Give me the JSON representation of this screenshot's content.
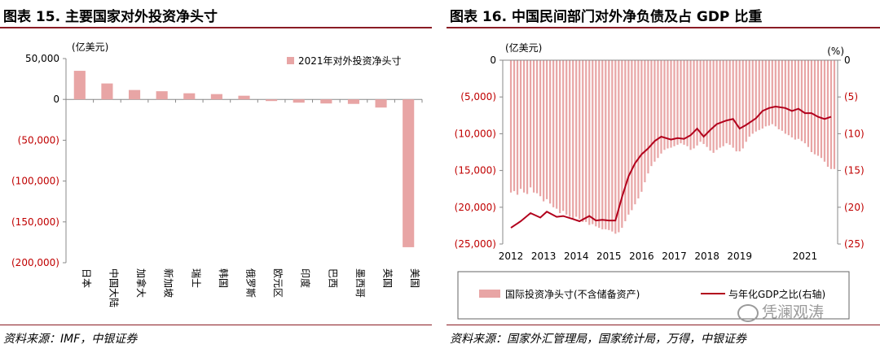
{
  "left": {
    "figure_title": "图表 15. 主要国家对外投资净头寸",
    "source": "资料来源：IMF，中银证券",
    "chart_data": {
      "type": "bar",
      "unit_label": "(亿美元)",
      "legend": "2021年对外投资净头寸",
      "categories": [
        "日本",
        "中国大陆",
        "加拿大",
        "新加坡",
        "瑞士",
        "韩国",
        "俄罗斯",
        "欧元区",
        "印度",
        "巴西",
        "墨西哥",
        "英国",
        "美国"
      ],
      "values": [
        35000,
        19500,
        11500,
        10000,
        7500,
        6500,
        4500,
        -2000,
        -4000,
        -5000,
        -5500,
        -10000,
        -181000
      ],
      "ylim": [
        -200000,
        50000
      ],
      "yticks": [
        50000,
        0,
        -50000,
        -100000,
        -150000,
        -200000
      ],
      "ytick_labels": [
        "50,000",
        "0",
        "(50,000)",
        "(100,000)",
        "(150,000)",
        "(200,000)"
      ],
      "colors": {
        "bar": "#e8a5a5",
        "negative_tick": "#c00000"
      }
    }
  },
  "right": {
    "figure_title": "图表 16. 中国民间部门对外净负债及占 GDP 比重",
    "source": "资料来源：国家外汇管理局，国家统计局，万得，中银证券",
    "watermark": "凭澜观涛",
    "chart_data": {
      "type": "bar",
      "left_unit_label": "(亿美元)",
      "right_unit_label": "(%)",
      "x_tick_labels": [
        "2012",
        "2013",
        "2014",
        "2015",
        "2016",
        "2017",
        "2018",
        "2019",
        "2021"
      ],
      "x_tick_positions": [
        2012,
        2013,
        2014,
        2015,
        2016,
        2017,
        2018,
        2019,
        2021
      ],
      "xlim": [
        2011.75,
        2022.0
      ],
      "left_ylim": [
        -25000,
        0
      ],
      "left_yticks": [
        0,
        -5000,
        -10000,
        -15000,
        -20000,
        -25000
      ],
      "left_ytick_labels": [
        "0",
        "(5,000)",
        "(10,000)",
        "(15,000)",
        "(20,000)",
        "(25,000)"
      ],
      "right_ylim": [
        -25,
        0
      ],
      "right_yticks": [
        0,
        -5,
        -10,
        -15,
        -20,
        -25
      ],
      "right_ytick_labels": [
        "0",
        "(5)",
        "(10)",
        "(15)",
        "(20)",
        "(25)"
      ],
      "series": [
        {
          "name": "国际投资净头寸(不含储备资产)",
          "axis": "left",
          "x": [
            2012.0,
            2012.1,
            2012.2,
            2012.3,
            2012.4,
            2012.5,
            2012.6,
            2012.7,
            2012.8,
            2012.9,
            2013.0,
            2013.1,
            2013.2,
            2013.3,
            2013.4,
            2013.5,
            2013.6,
            2013.7,
            2013.8,
            2013.9,
            2014.0,
            2014.1,
            2014.2,
            2014.3,
            2014.4,
            2014.5,
            2014.6,
            2014.7,
            2014.8,
            2014.9,
            2015.0,
            2015.1,
            2015.2,
            2015.3,
            2015.4,
            2015.5,
            2015.6,
            2015.7,
            2015.8,
            2015.9,
            2016.0,
            2016.1,
            2016.2,
            2016.3,
            2016.4,
            2016.5,
            2016.6,
            2016.7,
            2016.8,
            2016.9,
            2017.0,
            2017.1,
            2017.2,
            2017.3,
            2017.4,
            2017.5,
            2017.6,
            2017.7,
            2017.8,
            2017.9,
            2018.0,
            2018.1,
            2018.2,
            2018.3,
            2018.4,
            2018.5,
            2018.6,
            2018.7,
            2018.8,
            2018.9,
            2019.0,
            2019.1,
            2019.2,
            2019.3,
            2019.4,
            2019.5,
            2019.6,
            2019.7,
            2019.8,
            2019.9,
            2020.0,
            2020.1,
            2020.2,
            2020.3,
            2020.4,
            2020.5,
            2020.6,
            2020.7,
            2020.8,
            2020.9,
            2021.0,
            2021.1,
            2021.2,
            2021.3,
            2021.4,
            2021.5,
            2021.6,
            2021.7,
            2021.8,
            2021.9
          ],
          "values": [
            -18000,
            -17800,
            -18300,
            -17500,
            -18000,
            -18200,
            -17300,
            -18000,
            -18100,
            -18500,
            -19200,
            -18900,
            -19500,
            -20000,
            -20200,
            -20800,
            -20500,
            -21000,
            -21300,
            -21500,
            -21300,
            -21600,
            -22000,
            -22000,
            -22400,
            -22300,
            -22600,
            -22800,
            -23000,
            -23000,
            -23100,
            -23300,
            -23600,
            -23400,
            -22800,
            -21900,
            -21000,
            -20400,
            -19600,
            -18800,
            -17900,
            -16600,
            -15400,
            -14400,
            -13800,
            -13300,
            -12700,
            -12200,
            -12000,
            -11900,
            -11700,
            -11500,
            -11300,
            -11500,
            -11700,
            -12200,
            -12000,
            -11600,
            -11100,
            -11400,
            -11800,
            -12300,
            -12600,
            -12200,
            -11900,
            -11700,
            -11300,
            -11500,
            -11900,
            -12400,
            -12400,
            -12000,
            -11100,
            -10400,
            -10000,
            -9700,
            -9500,
            -9300,
            -9000,
            -8900,
            -8700,
            -9000,
            -9400,
            -9600,
            -10000,
            -10200,
            -10500,
            -10800,
            -10700,
            -11000,
            -11300,
            -11800,
            -12500,
            -12800,
            -13000,
            -13300,
            -13800,
            -14500,
            -14800,
            -14800
          ],
          "color": "#e8a5a5"
        },
        {
          "name": "与年化GDP之比(右轴)",
          "axis": "right",
          "x": [
            2012.0,
            2012.3,
            2012.6,
            2012.9,
            2013.1,
            2013.4,
            2013.6,
            2013.9,
            2014.1,
            2014.4,
            2014.6,
            2014.8,
            2015.0,
            2015.2,
            2015.4,
            2015.6,
            2015.8,
            2016.0,
            2016.2,
            2016.4,
            2016.6,
            2016.9,
            2017.1,
            2017.3,
            2017.5,
            2017.7,
            2017.9,
            2018.1,
            2018.3,
            2018.6,
            2018.8,
            2019.0,
            2019.2,
            2019.5,
            2019.7,
            2019.9,
            2020.1,
            2020.4,
            2020.6,
            2020.8,
            2021.0,
            2021.2,
            2021.4,
            2021.6,
            2021.8
          ],
          "values": [
            -22.8,
            -21.9,
            -20.8,
            -21.4,
            -20.6,
            -21.3,
            -21.2,
            -21.6,
            -21.9,
            -21.2,
            -21.8,
            -21.7,
            -21.8,
            -21.8,
            -18.6,
            -15.8,
            -14.0,
            -12.8,
            -12.0,
            -11.0,
            -10.4,
            -10.8,
            -10.6,
            -10.7,
            -10.2,
            -9.3,
            -10.4,
            -9.5,
            -8.7,
            -8.2,
            -8.0,
            -9.3,
            -8.8,
            -7.9,
            -6.9,
            -6.5,
            -6.3,
            -6.5,
            -6.9,
            -6.6,
            -7.2,
            -7.2,
            -7.7,
            -8.0,
            -7.7
          ],
          "color": "#b2001c"
        }
      ]
    }
  }
}
